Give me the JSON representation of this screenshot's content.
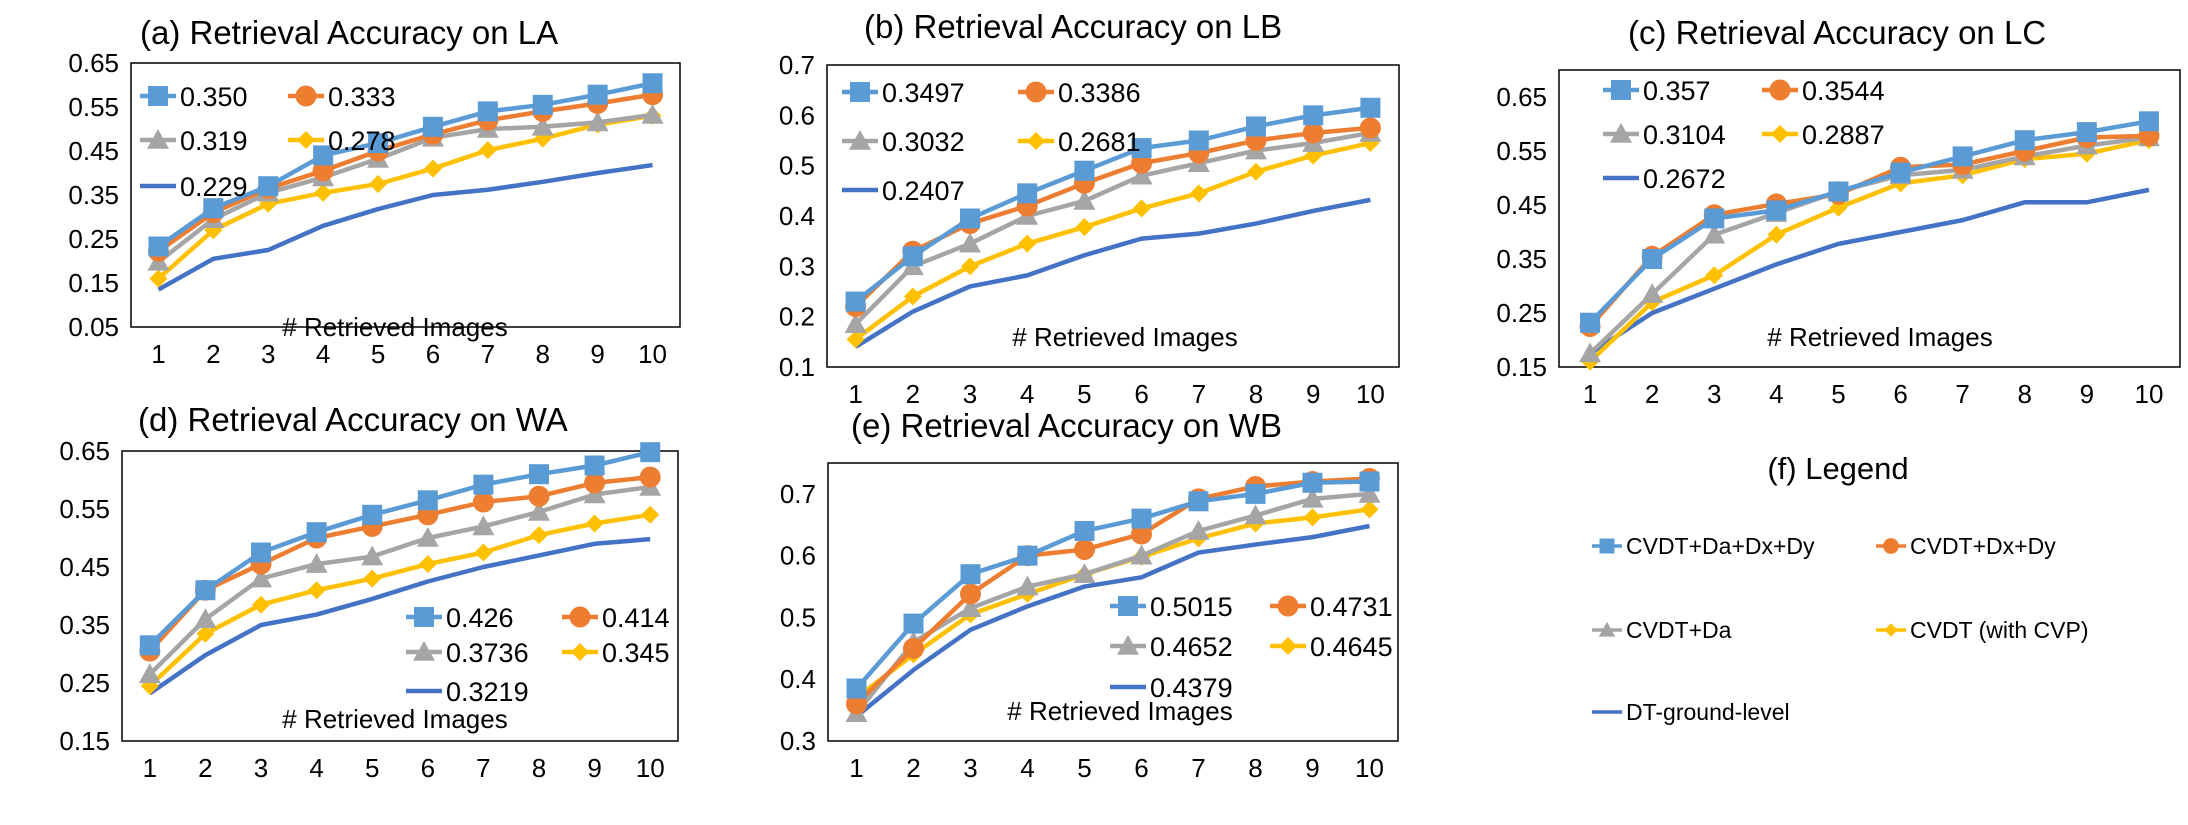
{
  "chart_data": [
    {
      "id": "a",
      "type": "line",
      "title": "(a) Retrieval Accuracy on LA",
      "xlabel": "# Retrieved Images",
      "ylabel": "",
      "x": [
        1,
        2,
        3,
        4,
        5,
        6,
        7,
        8,
        9,
        10
      ],
      "ylim": [
        0.05,
        0.65
      ],
      "yticks": [
        "0.05",
        "0.15",
        "0.25",
        "0.35",
        "0.45",
        "0.55",
        "0.65"
      ],
      "legend_placement": "top-left",
      "series": [
        {
          "key": "da_dx_dy",
          "legend_label": "0.350",
          "values": [
            0.233,
            0.32,
            0.37,
            0.44,
            0.468,
            0.505,
            0.54,
            0.555,
            0.578,
            0.604
          ]
        },
        {
          "key": "dx_dy",
          "legend_label": "0.333",
          "values": [
            0.222,
            0.31,
            0.365,
            0.405,
            0.45,
            0.488,
            0.52,
            0.54,
            0.558,
            0.578
          ]
        },
        {
          "key": "da",
          "legend_label": "0.319",
          "values": [
            0.198,
            0.295,
            0.355,
            0.39,
            0.432,
            0.48,
            0.5,
            0.505,
            0.515,
            0.532
          ]
        },
        {
          "key": "cvdt",
          "legend_label": "0.278",
          "values": [
            0.16,
            0.27,
            0.33,
            0.355,
            0.375,
            0.41,
            0.452,
            0.478,
            0.51,
            0.53
          ]
        },
        {
          "key": "ground",
          "legend_label": "0.229",
          "values": [
            0.135,
            0.205,
            0.225,
            0.28,
            0.318,
            0.35,
            0.362,
            0.38,
            0.4,
            0.418
          ]
        }
      ]
    },
    {
      "id": "b",
      "type": "line",
      "title": "(b) Retrieval Accuracy on LB",
      "xlabel": "# Retrieved Images",
      "ylabel": "",
      "x": [
        1,
        2,
        3,
        4,
        5,
        6,
        7,
        8,
        9,
        10
      ],
      "ylim": [
        0.1,
        0.7
      ],
      "yticks": [
        "0.1",
        "0.2",
        "0.3",
        "0.4",
        "0.5",
        "0.6",
        "0.7"
      ],
      "legend_placement": "top-left",
      "series": [
        {
          "key": "da_dx_dy",
          "legend_label": "0.3497",
          "values": [
            0.23,
            0.32,
            0.395,
            0.445,
            0.49,
            0.535,
            0.55,
            0.578,
            0.6,
            0.615
          ]
        },
        {
          "key": "dx_dy",
          "legend_label": "0.3386",
          "values": [
            0.22,
            0.33,
            0.385,
            0.42,
            0.465,
            0.505,
            0.525,
            0.55,
            0.565,
            0.575
          ]
        },
        {
          "key": "da",
          "legend_label": "0.3032",
          "values": [
            0.185,
            0.3,
            0.345,
            0.4,
            0.43,
            0.48,
            0.505,
            0.53,
            0.545,
            0.565
          ]
        },
        {
          "key": "cvdt",
          "legend_label": "0.2681",
          "values": [
            0.155,
            0.24,
            0.3,
            0.345,
            0.378,
            0.415,
            0.445,
            0.488,
            0.52,
            0.545
          ]
        },
        {
          "key": "ground",
          "legend_label": "0.2407",
          "values": [
            0.14,
            0.21,
            0.26,
            0.282,
            0.322,
            0.355,
            0.365,
            0.385,
            0.41,
            0.432
          ]
        }
      ]
    },
    {
      "id": "c",
      "type": "line",
      "title": "(c) Retrieval Accuracy on LC",
      "xlabel": "# Retrieved Images",
      "ylabel": "",
      "x": [
        1,
        2,
        3,
        4,
        5,
        6,
        7,
        8,
        9,
        10
      ],
      "ylim": [
        0.15,
        0.7
      ],
      "yticks": [
        "0.15",
        "0.25",
        "0.35",
        "0.45",
        "0.55",
        "0.65"
      ],
      "legend_placement": "top-left",
      "series": [
        {
          "key": "da_dx_dy",
          "legend_label": "0.357",
          "values": [
            0.232,
            0.35,
            0.425,
            0.44,
            0.475,
            0.51,
            0.54,
            0.57,
            0.585,
            0.605
          ]
        },
        {
          "key": "dx_dy",
          "legend_label": "0.3544",
          "values": [
            0.225,
            0.355,
            0.432,
            0.452,
            0.47,
            0.52,
            0.525,
            0.55,
            0.575,
            0.578
          ]
        },
        {
          "key": "da",
          "legend_label": "0.3104",
          "values": [
            0.175,
            0.285,
            0.395,
            0.435,
            0.475,
            0.505,
            0.515,
            0.54,
            0.56,
            0.575
          ]
        },
        {
          "key": "cvdt",
          "legend_label": "0.2887",
          "values": [
            0.16,
            0.27,
            0.32,
            0.395,
            0.445,
            0.49,
            0.505,
            0.535,
            0.545,
            0.57
          ]
        },
        {
          "key": "ground",
          "legend_label": "0.2672",
          "values": [
            0.175,
            0.25,
            0.295,
            0.34,
            0.378,
            0.4,
            0.422,
            0.455,
            0.455,
            0.478
          ]
        }
      ]
    },
    {
      "id": "d",
      "type": "line",
      "title": "(d) Retrieval Accuracy on WA",
      "xlabel": "# Retrieved Images",
      "ylabel": "",
      "x": [
        1,
        2,
        3,
        4,
        5,
        6,
        7,
        8,
        9,
        10
      ],
      "ylim": [
        0.15,
        0.65
      ],
      "yticks": [
        "0.15",
        "0.25",
        "0.35",
        "0.45",
        "0.55",
        "0.65"
      ],
      "legend_placement": "bottom-right",
      "series": [
        {
          "key": "da_dx_dy",
          "legend_label": "0.426",
          "values": [
            0.315,
            0.41,
            0.475,
            0.51,
            0.54,
            0.565,
            0.592,
            0.61,
            0.625,
            0.648
          ]
        },
        {
          "key": "dx_dy",
          "legend_label": "0.414",
          "values": [
            0.305,
            0.41,
            0.455,
            0.5,
            0.52,
            0.54,
            0.562,
            0.572,
            0.595,
            0.605
          ]
        },
        {
          "key": "da",
          "legend_label": "0.3736",
          "values": [
            0.265,
            0.36,
            0.43,
            0.455,
            0.468,
            0.5,
            0.52,
            0.545,
            0.575,
            0.588
          ]
        },
        {
          "key": "cvdt",
          "legend_label": "0.345",
          "values": [
            0.245,
            0.335,
            0.385,
            0.41,
            0.43,
            0.455,
            0.475,
            0.505,
            0.525,
            0.54
          ]
        },
        {
          "key": "ground",
          "legend_label": "0.3219",
          "values": [
            0.232,
            0.298,
            0.35,
            0.368,
            0.395,
            0.425,
            0.45,
            0.47,
            0.49,
            0.498
          ]
        }
      ]
    },
    {
      "id": "e",
      "type": "line",
      "title": "(e) Retrieval Accuracy on WB",
      "xlabel": "# Retrieved Images",
      "ylabel": "",
      "x": [
        1,
        2,
        3,
        4,
        5,
        6,
        7,
        8,
        9,
        10
      ],
      "ylim": [
        0.3,
        0.75
      ],
      "yticks": [
        "0.3",
        "0.4",
        "0.5",
        "0.6",
        "0.7"
      ],
      "legend_placement": "bottom-right",
      "series": [
        {
          "key": "da_dx_dy",
          "legend_label": "0.5015",
          "values": [
            0.385,
            0.49,
            0.57,
            0.6,
            0.64,
            0.66,
            0.688,
            0.7,
            0.718,
            0.72
          ]
        },
        {
          "key": "dx_dy",
          "legend_label": "0.4731",
          "values": [
            0.36,
            0.45,
            0.538,
            0.6,
            0.61,
            0.635,
            0.692,
            0.712,
            0.72,
            0.725
          ]
        },
        {
          "key": "da",
          "legend_label": "0.4652",
          "values": [
            0.345,
            0.46,
            0.515,
            0.55,
            0.57,
            0.6,
            0.64,
            0.665,
            0.692,
            0.7
          ]
        },
        {
          "key": "cvdt",
          "legend_label": "0.4645",
          "values": [
            0.37,
            0.44,
            0.505,
            0.538,
            0.57,
            0.598,
            0.628,
            0.652,
            0.662,
            0.675
          ]
        },
        {
          "key": "ground",
          "legend_label": "0.4379",
          "values": [
            0.34,
            0.415,
            0.48,
            0.518,
            0.55,
            0.565,
            0.605,
            0.618,
            0.63,
            0.648
          ]
        }
      ]
    }
  ],
  "legend_panel": {
    "title": "(f) Legend",
    "entries": [
      {
        "key": "da_dx_dy",
        "label": "CVDT+Da+Dx+Dy"
      },
      {
        "key": "dx_dy",
        "label": "CVDT+Dx+Dy"
      },
      {
        "key": "da",
        "label": "CVDT+Da"
      },
      {
        "key": "cvdt",
        "label": "CVDT (with CVP)"
      },
      {
        "key": "ground",
        "label": "DT-ground-level"
      }
    ]
  },
  "series_styles": {
    "da_dx_dy": {
      "color": "#5B9BD5",
      "marker": "square-marker"
    },
    "dx_dy": {
      "color": "#ED7D31",
      "marker": "circle-marker"
    },
    "da": {
      "color": "#A5A5A5",
      "marker": "triangle-marker"
    },
    "cvdt": {
      "color": "#FFC000",
      "marker": "diamond-marker"
    },
    "ground": {
      "color": "#4472C4",
      "marker": "none"
    }
  }
}
